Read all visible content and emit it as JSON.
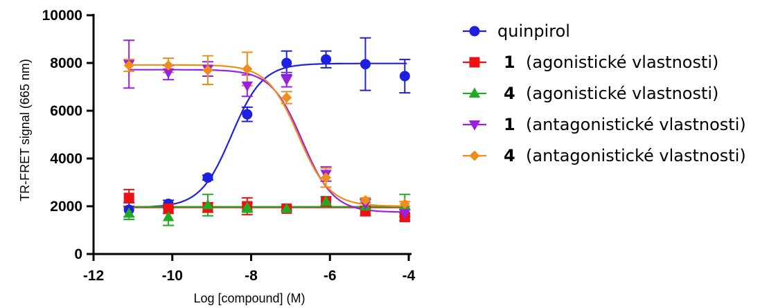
{
  "chart_data": {
    "type": "scatter",
    "xlabel": "Log [compound] (M)",
    "ylabel": "TR-FRET signal (665 nm)",
    "xlim": [
      -12,
      -4
    ],
    "ylim": [
      0,
      10000
    ],
    "xticks": [
      -12,
      -10,
      -8,
      -6,
      -4
    ],
    "yticks": [
      0,
      2000,
      4000,
      6000,
      8000,
      10000
    ],
    "x_tick_labels": [
      "-12",
      "-10",
      "-8",
      "-6",
      "-4"
    ],
    "y_tick_labels": [
      "0",
      "2000",
      "4000",
      "6000",
      "8000",
      "10000"
    ],
    "grid": false,
    "legend_position": "right",
    "series": [
      {
        "name": "quinpirol",
        "legend_num": "",
        "legend_text": "quinpirol",
        "color": "#1f1fe0",
        "marker": "circle",
        "fit": {
          "bottom": 1950,
          "top": 7980,
          "logEC50": -8.5,
          "hill": 1.1
        },
        "points": [
          {
            "x": -11.1,
            "y": 1850,
            "err": 300
          },
          {
            "x": -10.1,
            "y": 2100,
            "err": 150
          },
          {
            "x": -9.1,
            "y": 3200,
            "err": 100
          },
          {
            "x": -8.1,
            "y": 5850,
            "err": 300
          },
          {
            "x": -7.1,
            "y": 8000,
            "err": 500
          },
          {
            "x": -6.1,
            "y": 8150,
            "err": 350
          },
          {
            "x": -5.1,
            "y": 7950,
            "err": 1100
          },
          {
            "x": -4.1,
            "y": 7450,
            "err": 700
          }
        ]
      },
      {
        "name": "1 (agonistické vlastnosti)",
        "legend_num": "1",
        "legend_text": "(agonistické vlastnosti)",
        "color": "#ee1111",
        "marker": "square",
        "fit": {
          "bottom": 1950,
          "top": 1950,
          "logEC50": -8,
          "hill": 1
        },
        "points": [
          {
            "x": -11.1,
            "y": 2350,
            "err": 350
          },
          {
            "x": -10.1,
            "y": 1900,
            "err": 200
          },
          {
            "x": -9.1,
            "y": 1950,
            "err": 200
          },
          {
            "x": -8.1,
            "y": 2000,
            "err": 350
          },
          {
            "x": -7.1,
            "y": 1900,
            "err": 100
          },
          {
            "x": -6.1,
            "y": 2200,
            "err": 200
          },
          {
            "x": -5.1,
            "y": 1800,
            "err": 200
          },
          {
            "x": -4.1,
            "y": 1550,
            "err": 150
          }
        ]
      },
      {
        "name": "4 (agonistické vlastnosti)",
        "legend_num": "4",
        "legend_text": "(agonistické vlastnosti)",
        "color": "#22aa22",
        "marker": "triangle-up",
        "fit": {
          "bottom": 1980,
          "top": 1980,
          "logEC50": -8,
          "hill": 1
        },
        "points": [
          {
            "x": -11.1,
            "y": 1700,
            "err": 250
          },
          {
            "x": -10.1,
            "y": 1550,
            "err": 350
          },
          {
            "x": -9.1,
            "y": 2050,
            "err": 450
          },
          {
            "x": -8.1,
            "y": 1950,
            "err": 200
          },
          {
            "x": -7.1,
            "y": 1900,
            "err": 100
          },
          {
            "x": -6.1,
            "y": 2200,
            "err": 200
          },
          {
            "x": -5.1,
            "y": 2000,
            "err": 150
          },
          {
            "x": -4.1,
            "y": 2050,
            "err": 450
          }
        ]
      },
      {
        "name": "1 (antagonistické vlastnosti)",
        "legend_num": "1",
        "legend_text": "(antagonistické vlastnosti)",
        "color": "#9a1fe0",
        "marker": "triangle-down",
        "fit": {
          "bottom": 1750,
          "top": 7720,
          "logEC50": -6.7,
          "hill": -1.1
        },
        "points": [
          {
            "x": -11.1,
            "y": 7950,
            "err": 1000
          },
          {
            "x": -10.1,
            "y": 7600,
            "err": 300
          },
          {
            "x": -9.1,
            "y": 7750,
            "err": 300
          },
          {
            "x": -8.1,
            "y": 7050,
            "err": 450
          },
          {
            "x": -7.1,
            "y": 7300,
            "err": 300
          },
          {
            "x": -6.1,
            "y": 3350,
            "err": 300
          },
          {
            "x": -5.1,
            "y": 2100,
            "err": 200
          },
          {
            "x": -4.1,
            "y": 1700,
            "err": 150
          }
        ]
      },
      {
        "name": "4 (antagonistické vlastnosti)",
        "legend_num": "4",
        "legend_text": "(antagonistické vlastnosti)",
        "color": "#f08c1a",
        "marker": "diamond",
        "fit": {
          "bottom": 2000,
          "top": 7920,
          "logEC50": -6.8,
          "hill": -1.1
        },
        "points": [
          {
            "x": -11.1,
            "y": 7900,
            "err": 250
          },
          {
            "x": -10.1,
            "y": 7900,
            "err": 300
          },
          {
            "x": -9.1,
            "y": 7700,
            "err": 600
          },
          {
            "x": -8.1,
            "y": 7750,
            "err": 700
          },
          {
            "x": -7.1,
            "y": 6550,
            "err": 250
          },
          {
            "x": -6.1,
            "y": 3200,
            "err": 400
          },
          {
            "x": -5.1,
            "y": 2250,
            "err": 100
          },
          {
            "x": -4.1,
            "y": 2100,
            "err": 100
          }
        ]
      }
    ]
  }
}
